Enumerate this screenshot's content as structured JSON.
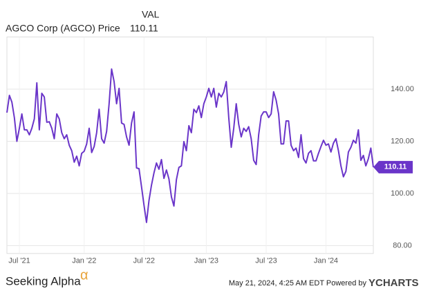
{
  "chart_data": {
    "type": "line",
    "series_header": "VAL",
    "series": [
      {
        "name": "AGCO Corp (AGCO) Price",
        "color": "#6a35c9",
        "values": [
          131,
          137.6,
          135,
          129,
          120,
          125,
          130.5,
          124.4,
          124.4,
          122.5,
          125,
          128.6,
          142.4,
          124.4,
          138.4,
          137,
          127.3,
          127.5,
          125,
          121,
          130.5,
          128.6,
          123.3,
          121,
          122.5,
          118.5,
          116.4,
          112,
          114.3,
          110.6,
          115.4,
          116.2,
          119,
          125,
          115.7,
          118,
          123.3,
          132.3,
          121,
          119.3,
          123.8,
          134.4,
          147.7,
          142.9,
          134.4,
          140.3,
          127,
          126.5,
          121.7,
          118.5,
          127,
          131.3,
          109.8,
          109.5,
          102.6,
          95.5,
          88.9,
          97.3,
          103.2,
          107.9,
          111.7,
          109.3,
          113,
          105.8,
          109,
          105.6,
          98.7,
          95.2,
          105.3,
          110,
          110.6,
          119.9,
          116.4,
          126,
          123.3,
          132.3,
          131,
          133.6,
          129.1,
          134.4,
          137,
          140.3,
          137,
          140.3,
          133.1,
          138.4,
          137,
          138.9,
          142.9,
          129.1,
          117.7,
          125,
          134.4,
          126.5,
          121.7,
          125,
          123.8,
          125.6,
          121,
          112.7,
          111.1,
          122.5,
          129.7,
          131.3,
          131.3,
          129.1,
          130.5,
          139,
          135.8,
          130.5,
          119,
          119,
          127.8,
          127.8,
          118.5,
          116.4,
          117.4,
          113.8,
          122.5,
          113.3,
          111.7,
          115.4,
          116.4,
          112.5,
          112.5,
          115.4,
          118,
          120.4,
          118.5,
          119,
          115.9,
          119.3,
          121,
          116.4,
          110.6,
          106.4,
          108.5,
          115.9,
          117.7,
          120.4,
          119.3,
          124.4,
          112.7,
          114.6,
          110.6,
          113.3,
          117.4,
          110.11
        ]
      }
    ],
    "categories": [
      null,
      null,
      null,
      null,
      null,
      "Jul '21",
      null,
      null,
      null,
      null,
      null,
      null,
      null,
      null,
      null,
      null,
      null,
      null,
      null,
      null,
      null,
      null,
      null,
      null,
      null,
      null,
      null,
      null,
      null,
      null,
      null,
      "Jan '22",
      null,
      null,
      null,
      null,
      null,
      null,
      null,
      null,
      null,
      null,
      null,
      null,
      null,
      null,
      null,
      null,
      null,
      null,
      null,
      null,
      null,
      null,
      null,
      "Jul '22",
      null,
      null,
      null,
      null,
      null,
      null,
      null,
      null,
      null,
      null,
      null,
      null,
      null,
      null,
      null,
      null,
      null,
      null,
      null,
      null,
      null,
      null,
      null,
      null,
      "Jan '23",
      null,
      null,
      null,
      null,
      null,
      null,
      null,
      null,
      null,
      null,
      null,
      null,
      null,
      null,
      null,
      null,
      null,
      null,
      null,
      null,
      null,
      null,
      null,
      "Jul '23",
      null,
      null,
      null,
      null,
      null,
      null,
      null,
      null,
      null,
      null,
      null,
      null,
      null,
      null,
      null,
      null,
      null,
      null,
      null,
      null,
      null,
      null,
      null,
      "Jan '24",
      null,
      null,
      null,
      null,
      null,
      null,
      null,
      null,
      null,
      null,
      null,
      null,
      null,
      null,
      null,
      null,
      null,
      null,
      null
    ],
    "ylim": [
      77,
      160
    ],
    "yticks": [
      {
        "value": 80,
        "label": "80.00"
      },
      {
        "value": 100,
        "label": "100.00"
      },
      {
        "value": 120,
        "label": "120.00"
      },
      {
        "value": 140,
        "label": "140.00"
      }
    ],
    "grid": true,
    "footer": {
      "brand": "Seeking Alpha",
      "brand_symbol": "α",
      "timestamp": "May 21, 2024, 4:25 AM EDT Powered by",
      "source": "YCHARTS"
    }
  }
}
